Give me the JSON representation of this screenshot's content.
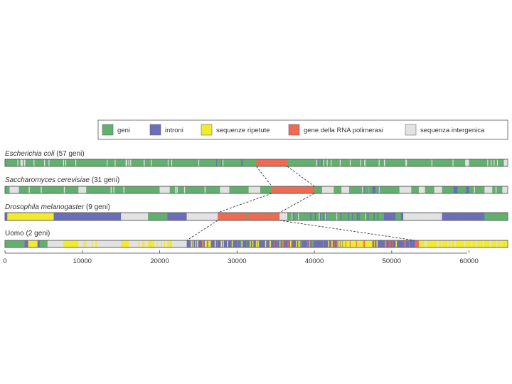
{
  "legend": {
    "items": [
      {
        "label": "geni",
        "color": "#62b06e"
      },
      {
        "label": "introni",
        "color": "#6b6fb9"
      },
      {
        "label": "sequenze ripetute",
        "color": "#f2ea2a"
      },
      {
        "label": "gene della RNA polimerasi",
        "color": "#ee6a53"
      },
      {
        "label": "sequenza intergenica",
        "color": "#e2e2e2"
      }
    ]
  },
  "tracks": [
    {
      "species": "Escherichia coli",
      "suffix": " (57 geni)"
    },
    {
      "species": "Saccharomyces cerevisiae",
      "suffix": " (31 geni)"
    },
    {
      "species": "Drosophila melanogaster",
      "suffix": " (9 geni)"
    },
    {
      "species": "Uomo",
      "suffix": " (2 geni)"
    }
  ],
  "axis": {
    "ticks": [
      "0",
      "10000",
      "20000",
      "30000",
      "40000",
      "50000",
      "60000"
    ],
    "tick_values": [
      0,
      10000,
      20000,
      30000,
      40000,
      50000,
      60000
    ],
    "max": 65000
  },
  "polymerase_regions": {
    "ecoli": [
      32500,
      36500
    ],
    "yeast": [
      34500,
      40000
    ],
    "drosophila": [
      27500,
      35500
    ],
    "human": [
      23500,
      53000
    ]
  }
}
